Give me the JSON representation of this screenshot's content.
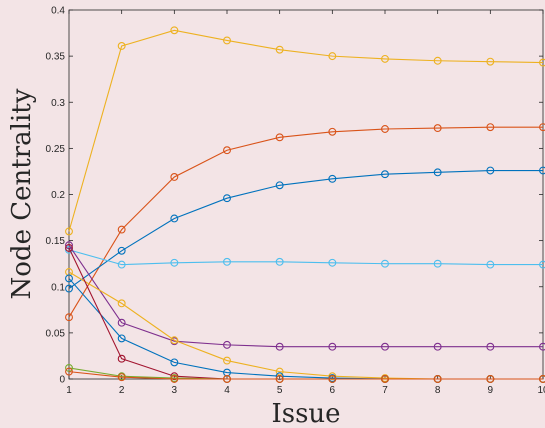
{
  "chart_data": {
    "type": "line",
    "title": "",
    "xlabel": "Issue",
    "ylabel": "Node Centrality",
    "xlim": [
      1,
      10
    ],
    "ylim": [
      0,
      0.4
    ],
    "xticks": [
      "1",
      "2",
      "3",
      "4",
      "5",
      "6",
      "7",
      "8",
      "9",
      "10"
    ],
    "yticks": [
      "0",
      "0.05",
      "0.1",
      "0.15",
      "0.2",
      "0.25",
      "0.3",
      "0.35",
      "0.4"
    ],
    "grid": false,
    "legend": "none",
    "x": [
      1,
      2,
      3,
      4,
      5,
      6,
      7,
      8,
      9,
      10
    ],
    "series": [
      {
        "color": "#EDB120",
        "values": [
          0.16,
          0.361,
          0.378,
          0.367,
          0.357,
          0.35,
          0.347,
          0.345,
          0.344,
          0.343
        ]
      },
      {
        "color": "#D95319",
        "values": [
          0.067,
          0.162,
          0.219,
          0.248,
          0.262,
          0.268,
          0.271,
          0.272,
          0.273,
          0.273
        ]
      },
      {
        "color": "#0072BD",
        "values": [
          0.098,
          0.139,
          0.174,
          0.196,
          0.21,
          0.217,
          0.222,
          0.224,
          0.226,
          0.226
        ]
      },
      {
        "color": "#4DBEEE",
        "values": [
          0.14,
          0.124,
          0.126,
          0.127,
          0.127,
          0.126,
          0.125,
          0.125,
          0.124,
          0.124
        ]
      },
      {
        "color": "#7E2F8E",
        "values": [
          0.145,
          0.061,
          0.041,
          0.037,
          0.035,
          0.035,
          0.035,
          0.035,
          0.035,
          0.035
        ]
      },
      {
        "color": "#EDB120",
        "values": [
          0.116,
          0.082,
          0.042,
          0.02,
          0.008,
          0.003,
          0.001,
          0.0,
          0.0,
          0.0
        ]
      },
      {
        "color": "#0072BD",
        "values": [
          0.109,
          0.044,
          0.018,
          0.007,
          0.003,
          0.001,
          0.0,
          0.0,
          0.0,
          0.0
        ]
      },
      {
        "color": "#A2142F",
        "values": [
          0.142,
          0.022,
          0.003,
          0.0,
          0.0,
          0.0,
          0.0,
          0.0,
          0.0,
          0.0
        ]
      },
      {
        "color": "#77AC30",
        "values": [
          0.012,
          0.003,
          0.001,
          0.0,
          0.0,
          0.0,
          0.0,
          0.0,
          0.0,
          0.0
        ]
      },
      {
        "color": "#D95319",
        "values": [
          0.008,
          0.002,
          0.0,
          0.0,
          0.0,
          0.0,
          0.0,
          0.0,
          0.0,
          0.0
        ]
      }
    ]
  }
}
